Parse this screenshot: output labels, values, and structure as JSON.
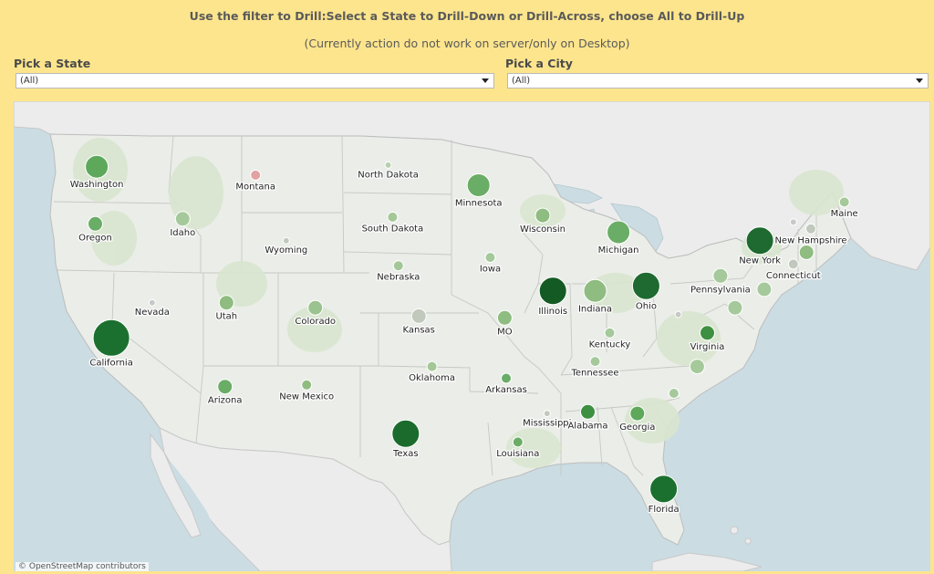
{
  "header": {
    "title": "Use the filter to Drill:Select a State to Drill-Down or Drill-Across, choose All to Drill-Up",
    "subtitle": "(Currently action do not work on server/only on Desktop)"
  },
  "filters": {
    "state": {
      "label": "Pick a State",
      "value": "(All)"
    },
    "city": {
      "label": "Pick a City",
      "value": "(All)"
    }
  },
  "map": {
    "attribution": "© OpenStreetMap contributors",
    "marks": [
      {
        "label": "Washington",
        "lon": -120.5,
        "lat": 47.4,
        "size": 3,
        "color": "#5ea85c"
      },
      {
        "label": "Oregon",
        "lon": -120.6,
        "lat": 44.0,
        "size": 2,
        "color": "#6aad66"
      },
      {
        "label": "Idaho",
        "lon": -114.6,
        "lat": 44.3,
        "size": 2,
        "color": "#a5c99b"
      },
      {
        "label": "Montana",
        "lon": -109.6,
        "lat": 46.9,
        "size": 1,
        "color": "#e2a2a2"
      },
      {
        "label": "Wyoming",
        "lon": -107.5,
        "lat": 43.0,
        "size": 0,
        "color": "#c1c9bd"
      },
      {
        "label": "North Dakota",
        "lon": -100.5,
        "lat": 47.5,
        "size": 0,
        "color": "#b9cfae"
      },
      {
        "label": "South Dakota",
        "lon": -100.2,
        "lat": 44.4,
        "size": 1,
        "color": "#a3c796"
      },
      {
        "label": "Nebraska",
        "lon": -99.8,
        "lat": 41.5,
        "size": 1,
        "color": "#a3c796"
      },
      {
        "label": "Kansas",
        "lon": -98.4,
        "lat": 38.5,
        "size": 2,
        "color": "#c1c9bd"
      },
      {
        "label": "Oklahoma",
        "lon": -97.5,
        "lat": 35.5,
        "size": 1,
        "color": "#a3c796"
      },
      {
        "label": "Texas",
        "lon": -99.3,
        "lat": 31.5,
        "size": 4,
        "color": "#1b6b2d"
      },
      {
        "label": "California",
        "lon": -119.5,
        "lat": 37.2,
        "size": 5,
        "color": "#1c702f"
      },
      {
        "label": "Nevada",
        "lon": -116.7,
        "lat": 39.3,
        "size": 0,
        "color": "#c8c8c8"
      },
      {
        "label": "Utah",
        "lon": -111.6,
        "lat": 39.3,
        "size": 2,
        "color": "#8fbc80"
      },
      {
        "label": "Colorado",
        "lon": -105.5,
        "lat": 39.0,
        "size": 2,
        "color": "#9bc38f"
      },
      {
        "label": "Arizona",
        "lon": -111.7,
        "lat": 34.3,
        "size": 2,
        "color": "#6aad66"
      },
      {
        "label": "New Mexico",
        "lon": -106.1,
        "lat": 34.4,
        "size": 1,
        "color": "#8fbc80"
      },
      {
        "label": "Minnesota",
        "lon": -94.3,
        "lat": 46.3,
        "size": 3,
        "color": "#6aad66"
      },
      {
        "label": "Iowa",
        "lon": -93.5,
        "lat": 42.0,
        "size": 1,
        "color": "#a5c99b"
      },
      {
        "label": "MO",
        "lon": -92.5,
        "lat": 38.4,
        "size": 2,
        "color": "#8fbc80"
      },
      {
        "label": "Arkansas",
        "lon": -92.4,
        "lat": 34.8,
        "size": 1,
        "color": "#6aad66"
      },
      {
        "label": "Louisiana",
        "lon": -91.6,
        "lat": 31.0,
        "size": 1,
        "color": "#6aad66"
      },
      {
        "label": "Wisconsin",
        "lon": -89.9,
        "lat": 44.5,
        "size": 2,
        "color": "#8fbc80"
      },
      {
        "label": "Illinois",
        "lon": -89.2,
        "lat": 40.0,
        "size": 4,
        "color": "#145a24"
      },
      {
        "label": "Michigan",
        "lon": -84.7,
        "lat": 43.5,
        "size": 3,
        "color": "#6aad66"
      },
      {
        "label": "Indiana",
        "lon": -86.3,
        "lat": 40.0,
        "size": 3,
        "color": "#8fbc80"
      },
      {
        "label": "Ohio",
        "lon": -82.8,
        "lat": 40.3,
        "size": 4,
        "color": "#1e6a30"
      },
      {
        "label": "Kentucky",
        "lon": -85.3,
        "lat": 37.5,
        "size": 1,
        "color": "#a5c99b"
      },
      {
        "label": "Tennessee",
        "lon": -86.3,
        "lat": 35.8,
        "size": 1,
        "color": "#a5c99b"
      },
      {
        "label": "Mississippi",
        "lon": -89.6,
        "lat": 32.7,
        "size": 0,
        "color": "#c1c9bd"
      },
      {
        "label": "Alabama",
        "lon": -86.8,
        "lat": 32.8,
        "size": 2,
        "color": "#3d8f41"
      },
      {
        "label": "Georgia",
        "lon": -83.4,
        "lat": 32.7,
        "size": 2,
        "color": "#5ea85c"
      },
      {
        "label": "Florida",
        "lon": -81.6,
        "lat": 28.2,
        "size": 4,
        "color": "#1c702f"
      },
      {
        "label": "Virginia",
        "lon": -78.6,
        "lat": 37.5,
        "size": 2,
        "color": "#3d8f41"
      },
      {
        "label": "Pennsylvania",
        "lon": -77.7,
        "lat": 40.9,
        "size": 2,
        "color": "#a5c99b"
      },
      {
        "label": "New York",
        "lon": -75.0,
        "lat": 43.0,
        "size": 4,
        "color": "#1e6a30"
      },
      {
        "label": "New Hampshire",
        "lon": -71.5,
        "lat": 43.7,
        "size": 1,
        "color": "#c1c9bd"
      },
      {
        "label": "Connecticut",
        "lon": -72.7,
        "lat": 41.6,
        "size": 1,
        "color": "#c1c9bd"
      },
      {
        "label": "Maine",
        "lon": -69.2,
        "lat": 45.3,
        "size": 1,
        "color": "#a5c99b"
      },
      {
        "label": "",
        "lon": -71.8,
        "lat": 42.3,
        "size": 2,
        "color": "#8fbc80"
      },
      {
        "label": "",
        "lon": -74.7,
        "lat": 40.1,
        "size": 2,
        "color": "#a5c99b"
      },
      {
        "label": "",
        "lon": -76.7,
        "lat": 39.0,
        "size": 2,
        "color": "#a5c99b"
      },
      {
        "label": "",
        "lon": -72.7,
        "lat": 44.1,
        "size": 0,
        "color": "#c8c8c8"
      },
      {
        "label": "",
        "lon": -79.3,
        "lat": 35.5,
        "size": 2,
        "color": "#a5c99b"
      },
      {
        "label": "",
        "lon": -80.9,
        "lat": 33.9,
        "size": 1,
        "color": "#a5c99b"
      },
      {
        "label": "",
        "lon": -80.6,
        "lat": 38.6,
        "size": 0,
        "color": "#c8c8c8"
      }
    ]
  }
}
